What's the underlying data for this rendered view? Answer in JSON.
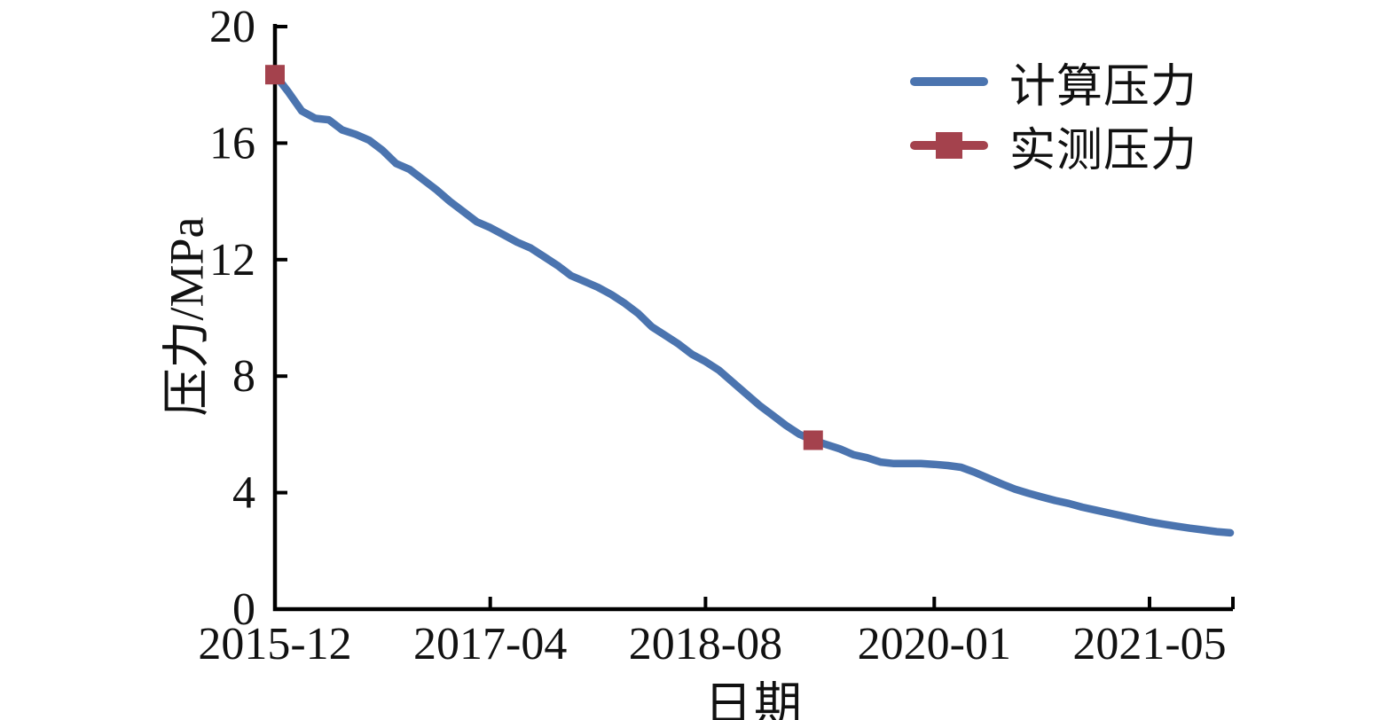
{
  "chart_data": {
    "type": "line",
    "title": "",
    "xlabel": "日期",
    "ylabel": "压力/MPa",
    "ylim": [
      0,
      20
    ],
    "yticks": [
      0,
      4,
      8,
      12,
      16,
      20
    ],
    "xticks": [
      "2015-12",
      "2017-04",
      "2018-08",
      "2020-01",
      "2021-05"
    ],
    "x_unit": "year-month",
    "grid": false,
    "legend_position": "top-right",
    "axis_color": "#000000",
    "months": [
      "2015-12",
      "2016-01",
      "2016-02",
      "2016-03",
      "2016-04",
      "2016-05",
      "2016-06",
      "2016-07",
      "2016-08",
      "2016-09",
      "2016-10",
      "2016-11",
      "2016-12",
      "2017-01",
      "2017-02",
      "2017-03",
      "2017-04",
      "2017-05",
      "2017-06",
      "2017-07",
      "2017-08",
      "2017-09",
      "2017-10",
      "2017-11",
      "2017-12",
      "2018-01",
      "2018-02",
      "2018-03",
      "2018-04",
      "2018-05",
      "2018-06",
      "2018-07",
      "2018-08",
      "2018-09",
      "2018-10",
      "2018-11",
      "2018-12",
      "2019-01",
      "2019-02",
      "2019-03",
      "2019-04",
      "2019-05",
      "2019-06",
      "2019-07",
      "2019-08",
      "2019-09",
      "2019-10",
      "2019-11",
      "2019-12",
      "2020-01",
      "2020-02",
      "2020-03",
      "2020-04",
      "2020-05",
      "2020-06",
      "2020-07",
      "2020-08",
      "2020-09",
      "2020-10",
      "2020-11",
      "2020-12",
      "2021-01",
      "2021-02",
      "2021-03",
      "2021-04",
      "2021-05",
      "2021-06",
      "2021-07",
      "2021-08",
      "2021-09",
      "2021-10",
      "2021-11"
    ],
    "series": [
      {
        "name": "计算压力",
        "type": "line",
        "color": "#4b74af",
        "values": [
          18.35,
          17.75,
          17.1,
          16.85,
          16.8,
          16.45,
          16.3,
          16.1,
          15.75,
          15.3,
          15.1,
          14.75,
          14.4,
          14.0,
          13.65,
          13.3,
          13.1,
          12.85,
          12.6,
          12.4,
          12.1,
          11.8,
          11.45,
          11.25,
          11.05,
          10.8,
          10.5,
          10.15,
          9.7,
          9.4,
          9.1,
          8.75,
          8.5,
          8.2,
          7.8,
          7.4,
          7.0,
          6.65,
          6.3,
          6.0,
          5.8,
          5.65,
          5.5,
          5.3,
          5.2,
          5.05,
          5.0,
          5.0,
          5.0,
          4.97,
          4.93,
          4.87,
          4.7,
          4.5,
          4.3,
          4.12,
          3.98,
          3.85,
          3.73,
          3.63,
          3.5,
          3.4,
          3.3,
          3.2,
          3.1,
          3.0,
          2.92,
          2.85,
          2.78,
          2.72,
          2.66,
          2.62
        ]
      },
      {
        "name": "实测压力",
        "type": "scatter",
        "marker": "square",
        "color": "#a4424d",
        "points": [
          {
            "x": "2015-12",
            "y": 18.35
          },
          {
            "x": "2019-04",
            "y": 5.8
          }
        ]
      }
    ]
  }
}
